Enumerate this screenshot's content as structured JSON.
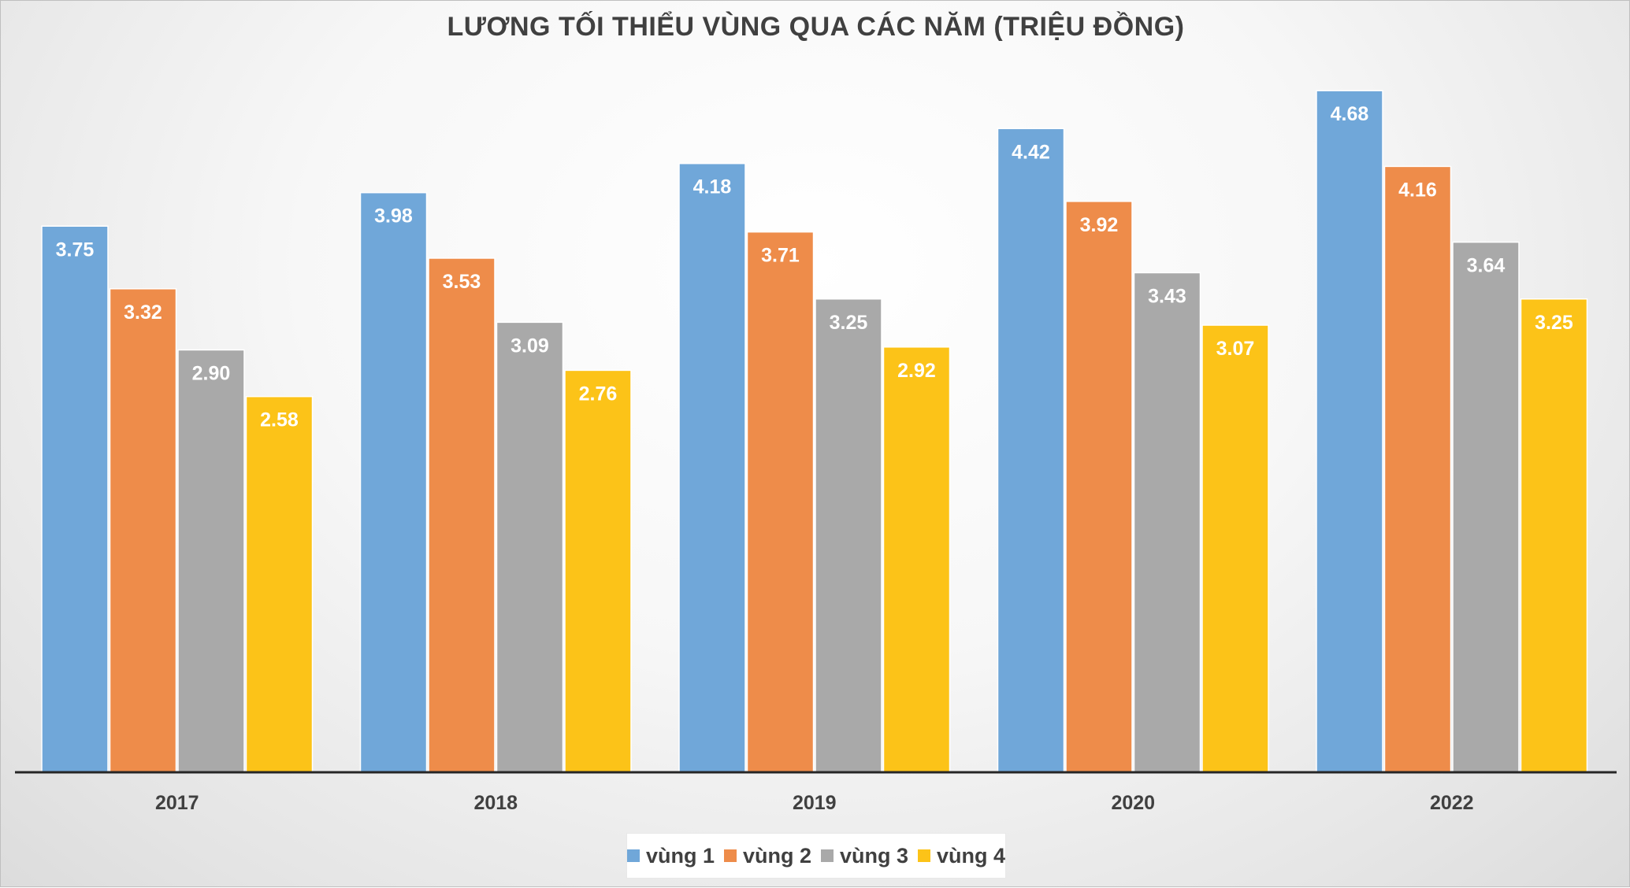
{
  "chart_data": {
    "type": "bar",
    "title": "LƯƠNG TỐI THIỂU VÙNG QUA CÁC NĂM (TRIỆU ĐỒNG)",
    "xlabel": "",
    "ylabel": "",
    "ylim": [
      0,
      5
    ],
    "grid": false,
    "legend_position": "bottom",
    "categories": [
      "2017",
      "2018",
      "2019",
      "2020",
      "2022"
    ],
    "series": [
      {
        "name": "vùng 1",
        "color": "#70A7D9",
        "values": [
          3.75,
          3.98,
          4.18,
          4.42,
          4.68
        ],
        "labels": [
          "3.75",
          "3.98",
          "4.18",
          "4.42",
          "4.68"
        ]
      },
      {
        "name": "vùng 2",
        "color": "#EE8C4A",
        "values": [
          3.32,
          3.53,
          3.71,
          3.92,
          4.16
        ],
        "labels": [
          "3.32",
          "3.53",
          "3.71",
          "3.92",
          "4.16"
        ]
      },
      {
        "name": "vùng 3",
        "color": "#A9A9A9",
        "values": [
          2.9,
          3.09,
          3.25,
          3.43,
          3.64
        ],
        "labels": [
          "2.90",
          "3.09",
          "3.25",
          "3.43",
          "3.64"
        ]
      },
      {
        "name": "vùng 4",
        "color": "#FCC318",
        "values": [
          2.58,
          2.76,
          2.92,
          3.07,
          3.25
        ],
        "labels": [
          "2.58",
          "2.76",
          "2.92",
          "3.07",
          "3.25"
        ]
      }
    ]
  }
}
